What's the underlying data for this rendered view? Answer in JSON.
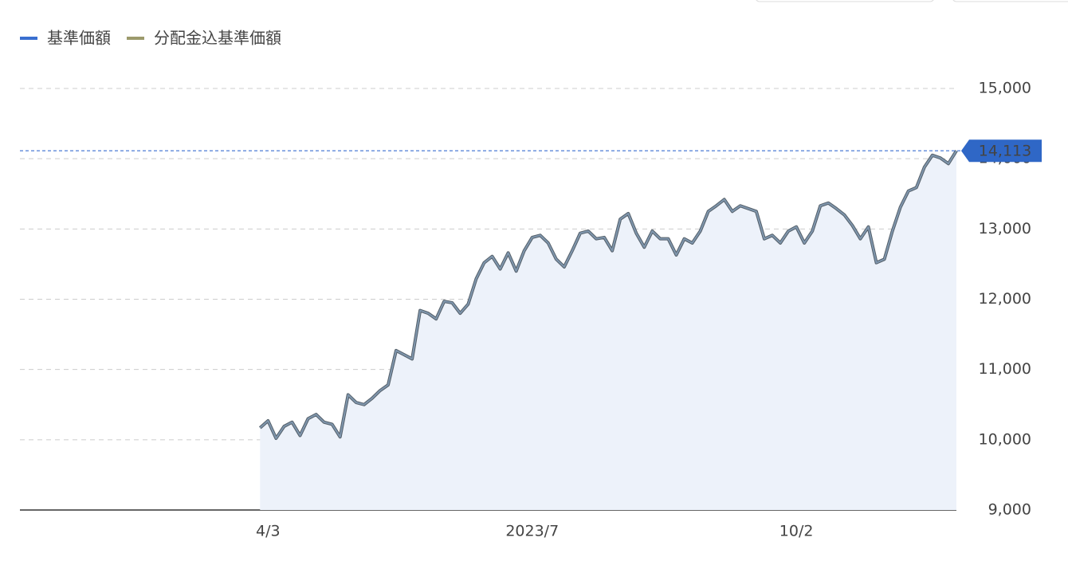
{
  "chart_data": {
    "type": "line",
    "legend": "top-left",
    "grid": true,
    "categories": [
      null,
      null,
      null,
      null,
      null,
      null,
      null,
      null,
      null,
      null,
      null,
      null,
      null,
      null,
      null,
      null,
      null,
      null,
      null,
      null,
      null,
      null,
      null,
      null,
      null,
      null,
      null,
      null,
      null,
      null,
      null,
      "4/3",
      null,
      null,
      null,
      null,
      null,
      null,
      null,
      null,
      null,
      null,
      null,
      null,
      null,
      null,
      null,
      null,
      null,
      null,
      null,
      null,
      null,
      null,
      null,
      null,
      null,
      null,
      null,
      null,
      null,
      null,
      null,
      null,
      "2023/7",
      null,
      null,
      null,
      null,
      null,
      null,
      null,
      null,
      null,
      null,
      null,
      null,
      null,
      null,
      null,
      null,
      null,
      null,
      null,
      null,
      null,
      null,
      null,
      null,
      null,
      null,
      null,
      null,
      null,
      null,
      null,
      null,
      "10/2",
      null,
      null,
      null,
      null,
      null,
      null,
      null,
      null,
      null,
      null,
      null,
      null,
      null,
      null,
      null,
      null,
      null,
      null,
      null,
      null
    ],
    "series": [
      {
        "name": "基準価額",
        "color": "#3a6fd0",
        "values": [
          null,
          null,
          null,
          null,
          null,
          null,
          null,
          null,
          null,
          null,
          null,
          null,
          null,
          null,
          null,
          null,
          null,
          null,
          null,
          null,
          null,
          null,
          null,
          null,
          null,
          null,
          null,
          null,
          null,
          null,
          10170,
          10270,
          10020,
          10190,
          10250,
          10060,
          10300,
          10360,
          10250,
          10220,
          10040,
          10640,
          10530,
          10500,
          10590,
          10700,
          10780,
          11270,
          11210,
          11150,
          11840,
          11800,
          11720,
          11970,
          11950,
          11800,
          11930,
          12290,
          12520,
          12610,
          12430,
          12660,
          12400,
          12690,
          12880,
          12910,
          12800,
          12570,
          12460,
          12690,
          12940,
          12970,
          12860,
          12880,
          12690,
          13140,
          13220,
          12940,
          12740,
          12970,
          12860,
          12860,
          12630,
          12860,
          12800,
          12970,
          13250,
          13330,
          13420,
          13250,
          13330,
          13290,
          13250,
          12860,
          12910,
          12800,
          12970,
          13030,
          12800,
          12970,
          13330,
          13370,
          13290,
          13200,
          13050,
          12860,
          13030,
          12520,
          12570,
          12970,
          13310,
          13540,
          13590,
          13880,
          14050,
          14010,
          13930,
          14113
        ]
      },
      {
        "name": "分配金込基準価額",
        "color": "#9c9a6c",
        "values": [
          null,
          null,
          null,
          null,
          null,
          null,
          null,
          null,
          null,
          null,
          null,
          null,
          null,
          null,
          null,
          null,
          null,
          null,
          null,
          null,
          null,
          null,
          null,
          null,
          null,
          null,
          null,
          null,
          null,
          null,
          10170,
          10270,
          10020,
          10190,
          10250,
          10060,
          10300,
          10360,
          10250,
          10220,
          10040,
          10640,
          10530,
          10500,
          10590,
          10700,
          10780,
          11270,
          11210,
          11150,
          11840,
          11800,
          11720,
          11970,
          11950,
          11800,
          11930,
          12290,
          12520,
          12610,
          12430,
          12660,
          12400,
          12690,
          12880,
          12910,
          12800,
          12570,
          12460,
          12690,
          12940,
          12970,
          12860,
          12880,
          12690,
          13140,
          13220,
          12940,
          12740,
          12970,
          12860,
          12860,
          12630,
          12860,
          12800,
          12970,
          13250,
          13330,
          13420,
          13250,
          13330,
          13290,
          13250,
          12860,
          12910,
          12800,
          12970,
          13030,
          12800,
          12970,
          13330,
          13370,
          13290,
          13200,
          13050,
          12860,
          13030,
          12520,
          12570,
          12970,
          13310,
          13540,
          13590,
          13880,
          14050,
          14010,
          13930,
          14113
        ]
      }
    ],
    "ylim": [
      9000,
      15000
    ],
    "yticks": [
      {
        "value": 9000,
        "label": "9,000"
      },
      {
        "value": 10000,
        "label": "10,000"
      },
      {
        "value": 11000,
        "label": "11,000"
      },
      {
        "value": 12000,
        "label": "12,000"
      },
      {
        "value": 13000,
        "label": "13,000"
      },
      {
        "value": 14000,
        "label": "14,000"
      },
      {
        "value": 15000,
        "label": "15,000"
      }
    ],
    "marker": {
      "value": 14113,
      "label": "14,113"
    }
  }
}
